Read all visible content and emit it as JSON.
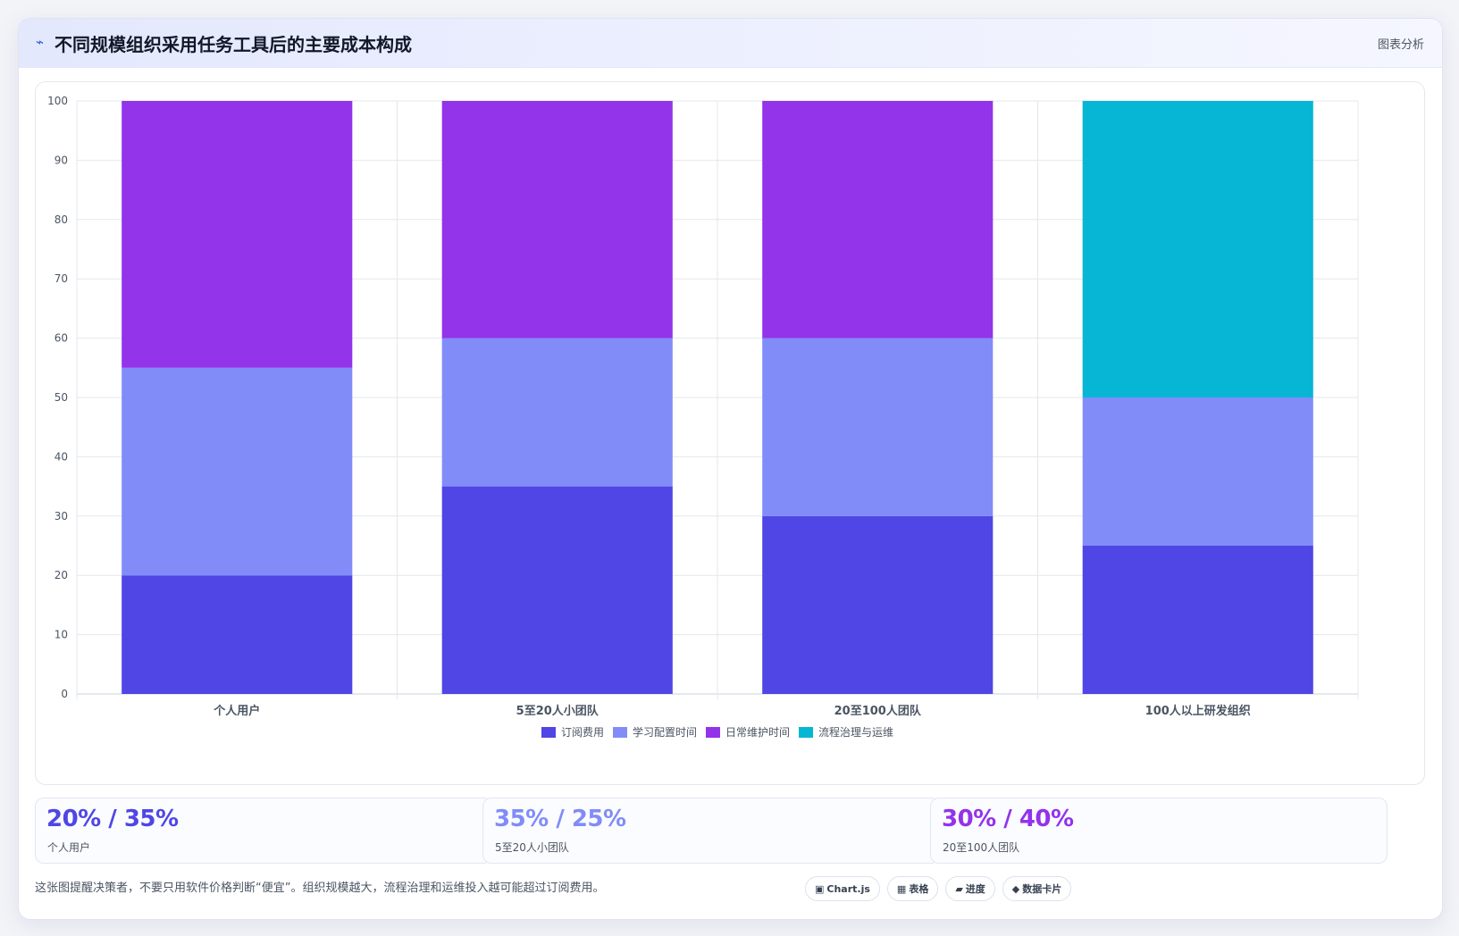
{
  "header": {
    "title": "不同规模组织采用任务工具后的主要成本构成",
    "tag": "图表分析",
    "icon": "lightning-icon"
  },
  "chart_data": {
    "type": "bar",
    "stacked": true,
    "categories": [
      "个人用户",
      "5至20人小团队",
      "20至100人团队",
      "100人以上研发组织"
    ],
    "series": [
      {
        "name": "订阅费用",
        "color": "#4f46e5",
        "values": [
          20,
          35,
          30,
          25
        ]
      },
      {
        "name": "学习配置时间",
        "color": "#818cf8",
        "values": [
          35,
          25,
          30,
          25
        ]
      },
      {
        "name": "日常维护时间",
        "color": "#9333ea",
        "values": [
          45,
          40,
          40,
          0
        ]
      },
      {
        "name": "流程治理与运维",
        "color": "#06b6d4",
        "values": [
          0,
          0,
          0,
          50
        ]
      }
    ],
    "ylim": [
      0,
      100
    ],
    "yticks": [
      0,
      10,
      20,
      30,
      40,
      50,
      60,
      70,
      80,
      90,
      100
    ],
    "grid": true,
    "legend_position": "bottom"
  },
  "stats": [
    {
      "value": "20% / 35%",
      "label": "个人用户",
      "color": "#4f46e5"
    },
    {
      "value": "35% / 25%",
      "label": "5至20人小团队",
      "color": "#818cf8"
    },
    {
      "value": "30% / 40%",
      "label": "20至100人团队",
      "color": "#9333ea"
    }
  ],
  "footnote": "这张图提醒决策者，不要只用软件价格判断“便宜”。组织规模越大，流程治理和运维投入越可能超过订阅费用。",
  "chips": [
    {
      "icon": "▣",
      "label": "Chart.js"
    },
    {
      "icon": "▦",
      "label": "表格"
    },
    {
      "icon": "▰",
      "label": "进度"
    },
    {
      "icon": "◆",
      "label": "数据卡片"
    }
  ]
}
